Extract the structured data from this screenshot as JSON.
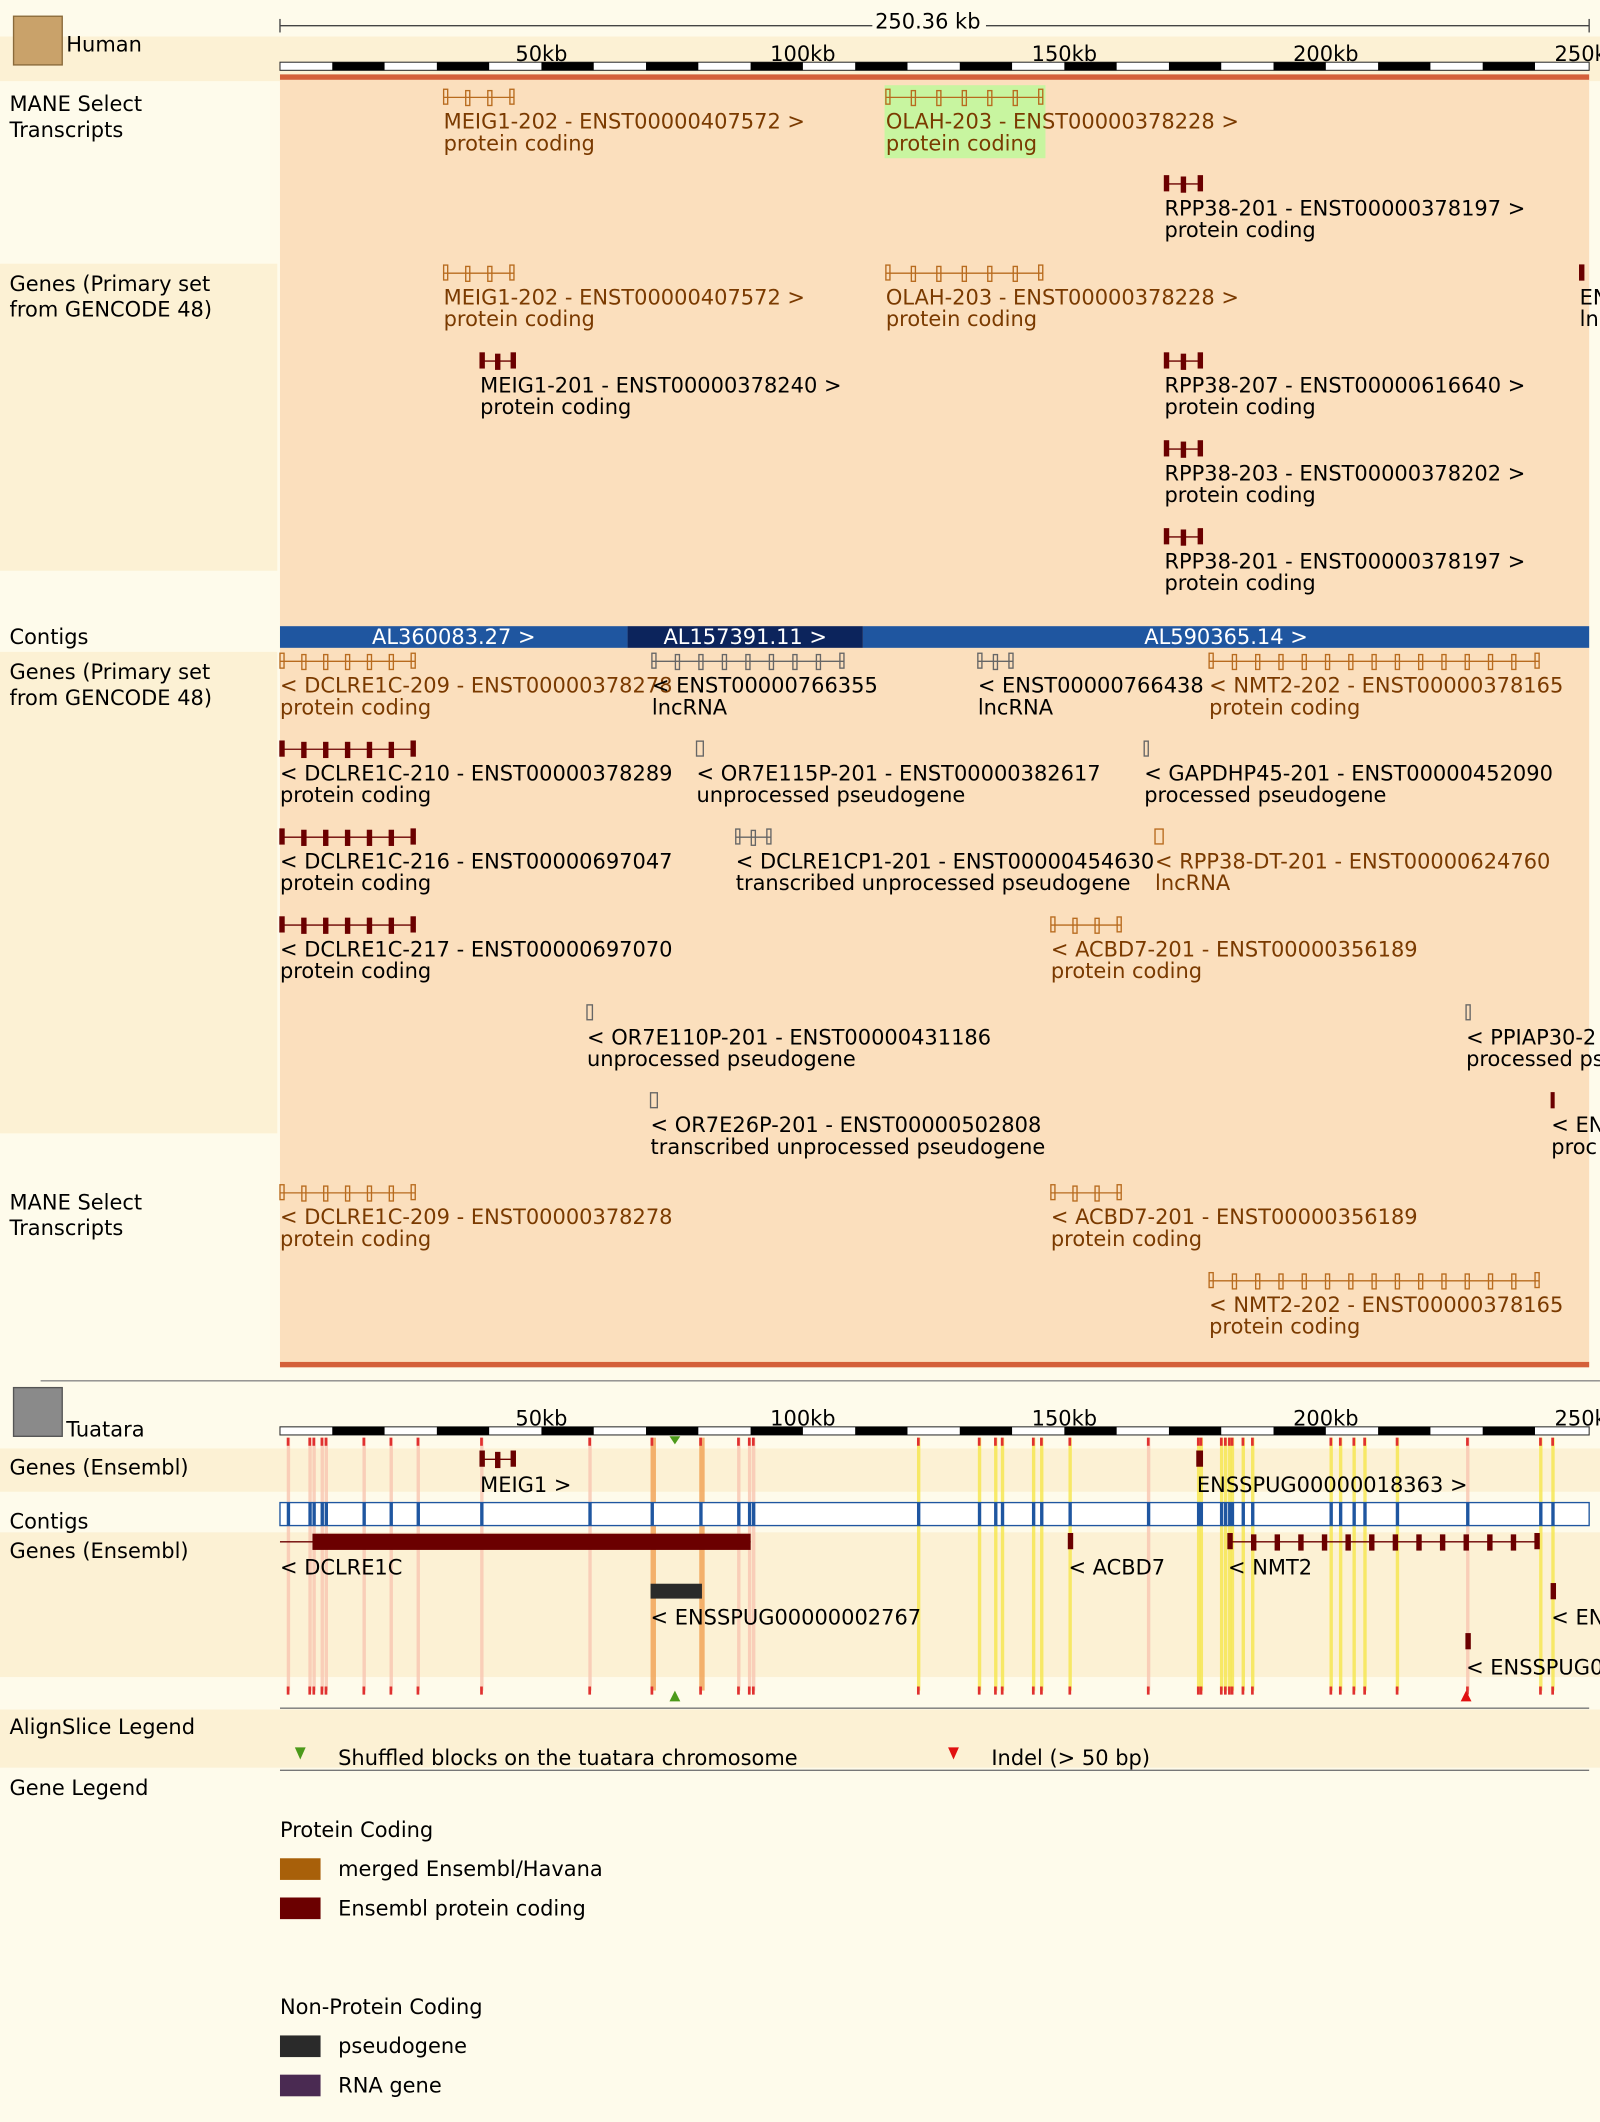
{
  "human": {
    "species": "Human",
    "scale": "250.36 kb",
    "ruler": [
      "50kb",
      "100kb",
      "150kb",
      "200kb",
      "250kb"
    ],
    "tracks": [
      {
        "label": [
          "MANE Select",
          "Transcripts"
        ],
        "features": [
          {
            "name": "MEIG1-202 - ENST00000407572 >",
            "biotype": "protein coding"
          },
          {
            "name": "OLAH-203 - ENST00000378228 >",
            "biotype": "protein coding"
          },
          {
            "name": "RPP38-201 - ENST00000378197 >",
            "biotype": "protein coding"
          }
        ]
      },
      {
        "label": [
          "Genes (Primary set",
          "from GENCODE 48)"
        ],
        "features": [
          {
            "name": "MEIG1-202 - ENST00000407572 >",
            "biotype": "protein coding"
          },
          {
            "name": "OLAH-203 - ENST00000378228 >",
            "biotype": "protein coding"
          },
          {
            "name": "EN",
            "biotype": "ln"
          },
          {
            "name": "MEIG1-201 - ENST00000378240 >",
            "biotype": "protein coding"
          },
          {
            "name": "RPP38-207 - ENST00000616640 >",
            "biotype": "protein coding"
          },
          {
            "name": "RPP38-203 - ENST00000378202 >",
            "biotype": "protein coding"
          },
          {
            "name": "RPP38-201 - ENST00000378197 >",
            "biotype": "protein coding"
          }
        ]
      },
      {
        "label": [
          "Contigs"
        ],
        "contigs": [
          {
            "name": "AL360083.27 >",
            "color": "#1f56a0"
          },
          {
            "name": "AL157391.11 >",
            "color": "#0c245c"
          },
          {
            "name": "AL590365.14 >",
            "color": "#1f56a0"
          }
        ]
      },
      {
        "label": [
          "Genes (Primary set",
          "from GENCODE 48)"
        ],
        "features": [
          {
            "name": "< DCLRE1C-209 - ENST00000378278",
            "biotype": "protein coding"
          },
          {
            "name": "< ENST00000766355",
            "biotype": "lncRNA"
          },
          {
            "name": "< ENST00000766438",
            "biotype": "lncRNA"
          },
          {
            "name": "< NMT2-202 - ENST00000378165",
            "biotype": "protein coding"
          },
          {
            "name": "< DCLRE1C-210 - ENST00000378289",
            "biotype": "protein coding"
          },
          {
            "name": "< OR7E115P-201 - ENST00000382617",
            "biotype": "unprocessed pseudogene"
          },
          {
            "name": "< GAPDHP45-201 - ENST00000452090",
            "biotype": "processed pseudogene"
          },
          {
            "name": "< DCLRE1C-216 - ENST00000697047",
            "biotype": "protein coding"
          },
          {
            "name": "< DCLRE1CP1-201 - ENST00000454630",
            "biotype": "transcribed unprocessed pseudogene"
          },
          {
            "name": "< RPP38-DT-201 - ENST00000624760",
            "biotype": "lncRNA"
          },
          {
            "name": "< DCLRE1C-217 - ENST00000697070",
            "biotype": "protein coding"
          },
          {
            "name": "< ACBD7-201 - ENST00000356189",
            "biotype": "protein coding"
          },
          {
            "name": "< OR7E110P-201 - ENST00000431186",
            "biotype": "unprocessed pseudogene"
          },
          {
            "name": "< PPIAP30-2",
            "biotype": "processed ps"
          },
          {
            "name": "< OR7E26P-201 - ENST00000502808",
            "biotype": "transcribed unprocessed pseudogene"
          },
          {
            "name": "< EN",
            "biotype": "proc"
          }
        ]
      },
      {
        "label": [
          "MANE Select",
          "Transcripts"
        ],
        "features": [
          {
            "name": "< DCLRE1C-209 - ENST00000378278",
            "biotype": "protein coding"
          },
          {
            "name": "< ACBD7-201 - ENST00000356189",
            "biotype": "protein coding"
          },
          {
            "name": "< NMT2-202 - ENST00000378165",
            "biotype": "protein coding"
          }
        ]
      }
    ]
  },
  "tuatara": {
    "species": "Tuatara",
    "ruler": [
      "50kb",
      "100kb",
      "150kb",
      "200kb",
      "250kb"
    ],
    "tracks": [
      {
        "label": [
          "Genes (Ensembl)"
        ],
        "features": [
          {
            "name": "MEIG1 >"
          },
          {
            "name": "ENSSPUG00000018363 >"
          }
        ]
      },
      {
        "label": [
          "Contigs"
        ]
      },
      {
        "label": [
          "Genes (Ensembl)"
        ],
        "features": [
          {
            "name": "< DCLRE1C"
          },
          {
            "name": "< ACBD7"
          },
          {
            "name": "< NMT2"
          },
          {
            "name": "< ENSSPUG00000002767"
          },
          {
            "name": "< EN"
          },
          {
            "name": "< ENSSPUG0"
          }
        ]
      }
    ]
  },
  "align_legend": {
    "title": "AlignSlice Legend",
    "items": [
      {
        "label": "Shuffled blocks on the tuatara chromosome",
        "color": "#4c9a1a"
      },
      {
        "label": "Indel (> 50 bp)",
        "color": "#e01010"
      }
    ]
  },
  "gene_legend": {
    "title": "Gene Legend",
    "groups": [
      {
        "title": "Protein Coding",
        "items": [
          {
            "label": "merged Ensembl/Havana",
            "color": "#a8600a"
          },
          {
            "label": "Ensembl protein coding",
            "color": "#6b0000"
          }
        ]
      },
      {
        "title": "Non-Protein Coding",
        "items": [
          {
            "label": "pseudogene",
            "color": "#2a2a2a"
          },
          {
            "label": "RNA gene",
            "color": "#4a2a52"
          }
        ]
      }
    ]
  }
}
